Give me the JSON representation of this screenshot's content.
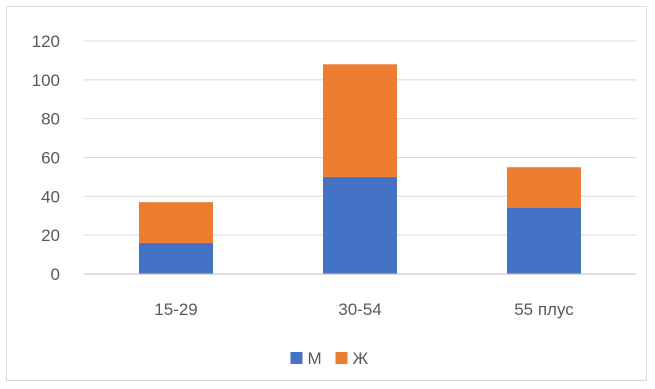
{
  "chart_data": {
    "type": "bar",
    "stacked": true,
    "categories": [
      "15-29",
      "30-54",
      "55 плус"
    ],
    "series": [
      {
        "name": "М",
        "values": [
          16,
          50,
          34
        ],
        "color": "#4472c4"
      },
      {
        "name": "Ж",
        "values": [
          21,
          58,
          21
        ],
        "color": "#ed7d31"
      }
    ],
    "ylim": [
      0,
      120
    ],
    "yticks": [
      0,
      20,
      40,
      60,
      80,
      100,
      120
    ],
    "grid": true,
    "legend_position": "bottom",
    "title": "",
    "xlabel": "",
    "ylabel": ""
  }
}
